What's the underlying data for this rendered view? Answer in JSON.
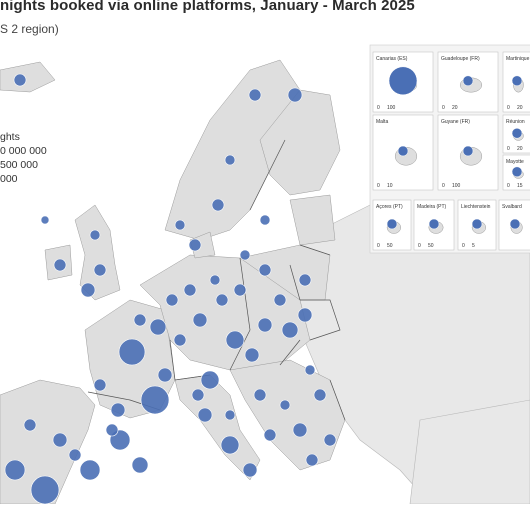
{
  "title": "nights booked via online platforms, January - March 2025",
  "subtitle": "S 2 region)",
  "legend": {
    "heading": "ghts",
    "items": [
      "0 000 000",
      "500 000",
      "000"
    ]
  },
  "colors": {
    "background": "#ffffff",
    "land_focus": "#dcdcdc",
    "land_other": "#e8e8e8",
    "sea": "#ffffff",
    "border": "#555555",
    "bubble": "#4a6fb5"
  },
  "insets": [
    {
      "name": "Canarias (ES)",
      "scale": [
        "0",
        "100"
      ]
    },
    {
      "name": "Guadeloupe (FR)",
      "scale": [
        "0",
        "20"
      ]
    },
    {
      "name": "Martinique",
      "scale": [
        "0",
        "20"
      ]
    },
    {
      "name": "Réunion",
      "scale": [
        "0",
        "20"
      ]
    },
    {
      "name": "Malta",
      "scale": [
        "0",
        "10"
      ]
    },
    {
      "name": "Guyane (FR)",
      "scale": [
        "0",
        "100"
      ]
    },
    {
      "name": "Mayotte",
      "scale": [
        "0",
        "15"
      ]
    },
    {
      "name": "Açores (PT)",
      "scale": [
        "0",
        "50"
      ]
    },
    {
      "name": "Madeira (PT)",
      "scale": [
        "0",
        "50"
      ]
    },
    {
      "name": "Liechtenstein",
      "scale": [
        "0",
        "5"
      ]
    },
    {
      "name": "Svalbard",
      "scale": []
    }
  ]
}
